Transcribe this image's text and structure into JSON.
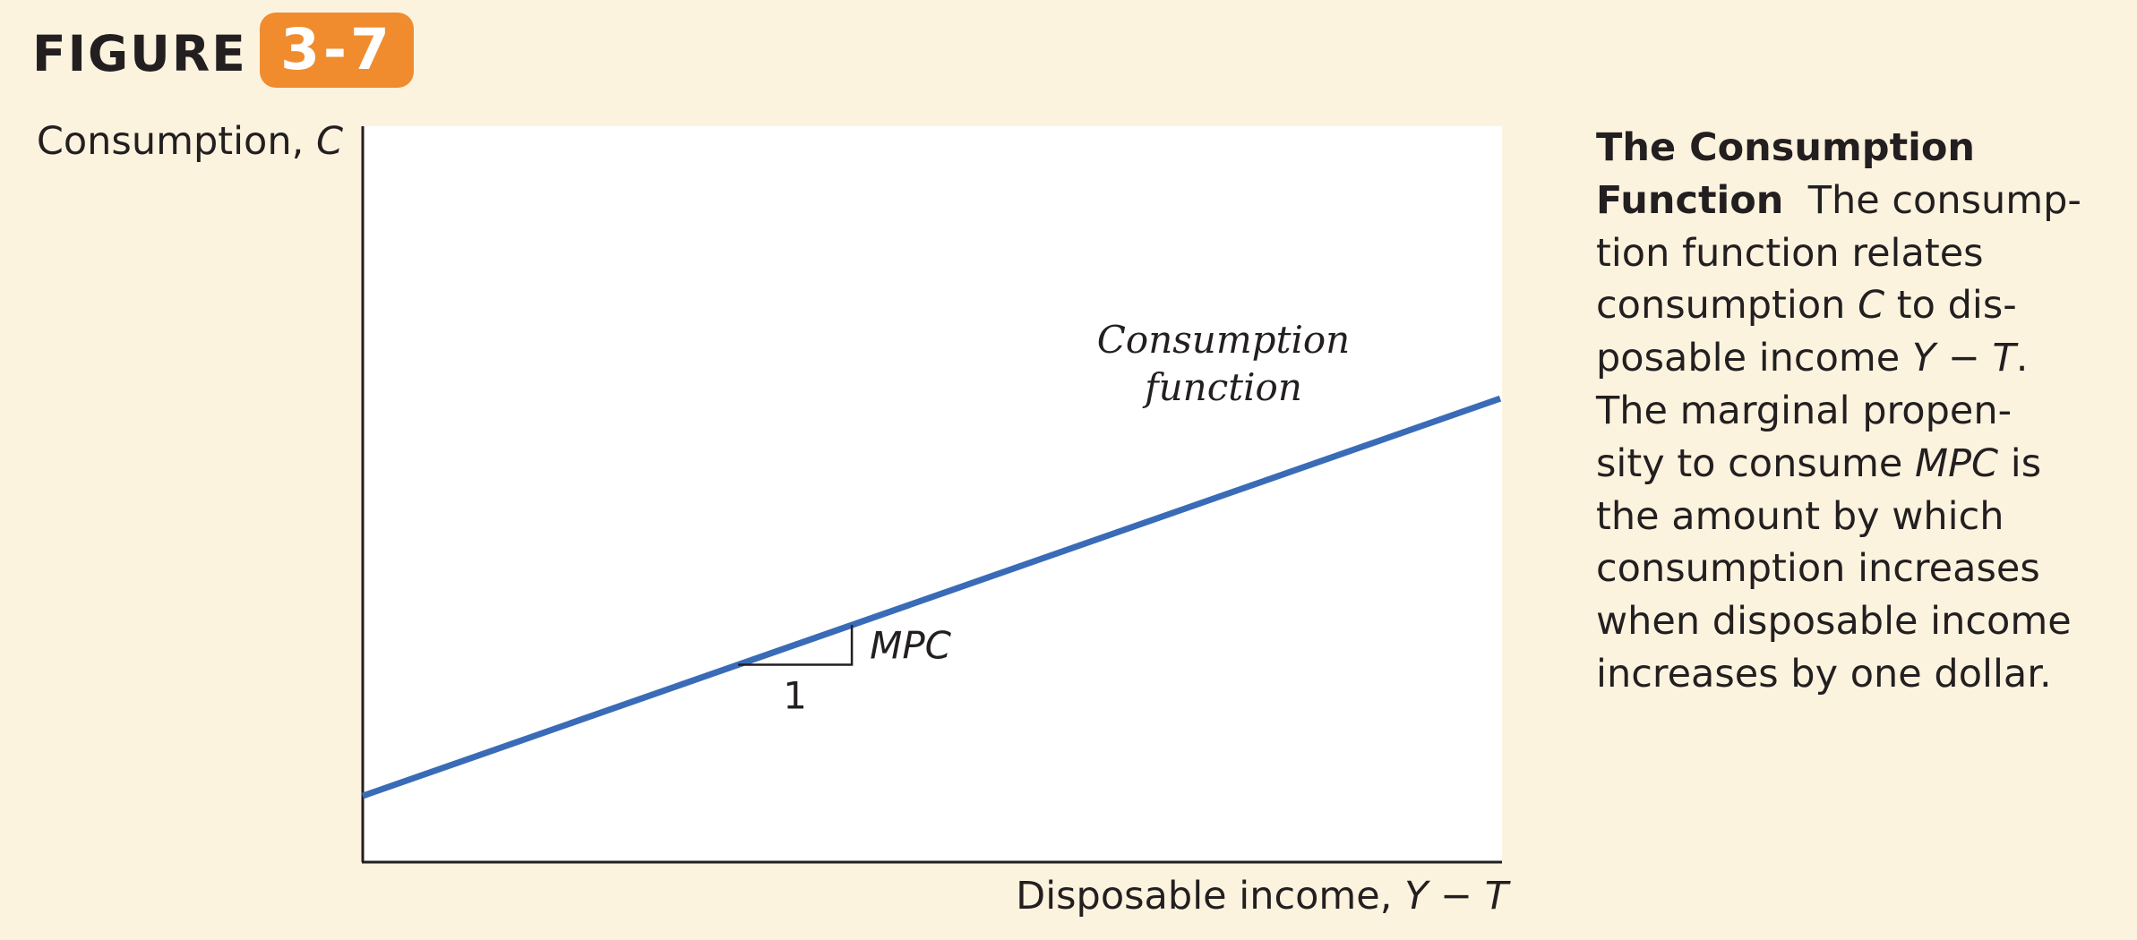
{
  "figure": {
    "label": "FIGURE",
    "number": "3-7"
  },
  "colors": {
    "background": "#fcf3df",
    "badge": "#f08c2e",
    "line": "#3a6bb7",
    "plot_area": "#ffffff"
  },
  "chart_data": {
    "type": "line",
    "title": "The Consumption Function",
    "ylabel_text": "Consumption, ",
    "ylabel_var": "C",
    "xlabel_text": "Disposable income, ",
    "xlabel_var": "Y − T",
    "xlim": [
      0,
      10
    ],
    "ylim": [
      0,
      10
    ],
    "grid": false,
    "series": [
      {
        "name": "Consumption function",
        "x": [
          0,
          10
        ],
        "y": [
          0.9,
          6.3
        ]
      }
    ],
    "series_label_line1": "Consumption",
    "series_label_line2": "function",
    "slope_triangle": {
      "x_start": 3.3,
      "run_label": "1",
      "rise_label": "MPC"
    }
  },
  "caption": {
    "title_line1": "The Consumption",
    "title_line2": "Function",
    "lines": [
      "The consump-",
      "tion function relates",
      "consumption ",
      "C",
      " to dis-",
      "posable income ",
      "Y − T",
      ".",
      "The marginal propen-",
      "sity to consume ",
      "MPC",
      " is",
      "the amount by which",
      "consumption increases",
      "when disposable income",
      "increases by one dollar."
    ]
  }
}
